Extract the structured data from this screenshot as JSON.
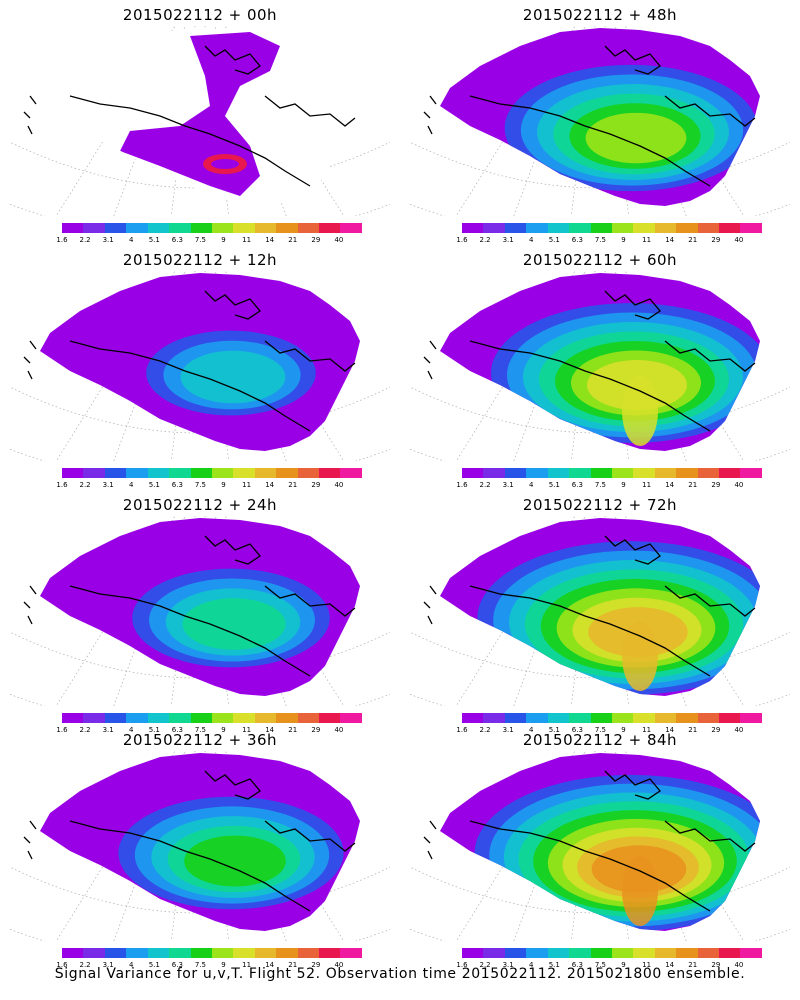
{
  "panels": [
    {
      "title": "2015022112 + 00h",
      "intensity": 0
    },
    {
      "title": "2015022112 + 48h",
      "intensity": 4
    },
    {
      "title": "2015022112 + 12h",
      "intensity": 1
    },
    {
      "title": "2015022112 + 60h",
      "intensity": 5
    },
    {
      "title": "2015022112 + 24h",
      "intensity": 2
    },
    {
      "title": "2015022112 + 72h",
      "intensity": 6
    },
    {
      "title": "2015022112 + 36h",
      "intensity": 3
    },
    {
      "title": "2015022112 + 84h",
      "intensity": 7
    }
  ],
  "colorbar": {
    "colors": [
      "#9a00e6",
      "#7a2be8",
      "#2855e8",
      "#1c9ef0",
      "#12c4cc",
      "#10d890",
      "#18d018",
      "#9be31a",
      "#d8e02a",
      "#e6b82c",
      "#e8921e",
      "#e8623a",
      "#e8184e",
      "#f01aa0"
    ],
    "ticks": [
      "1.6",
      "2.2",
      "3.1",
      "4",
      "5.1",
      "6.3",
      "7.5",
      "9",
      "11",
      "14",
      "21",
      "29",
      "40"
    ]
  },
  "footer": "Signal Variance for u,v,T. Flight 52. Observation time 2015022112. 2015021800 ensemble."
}
